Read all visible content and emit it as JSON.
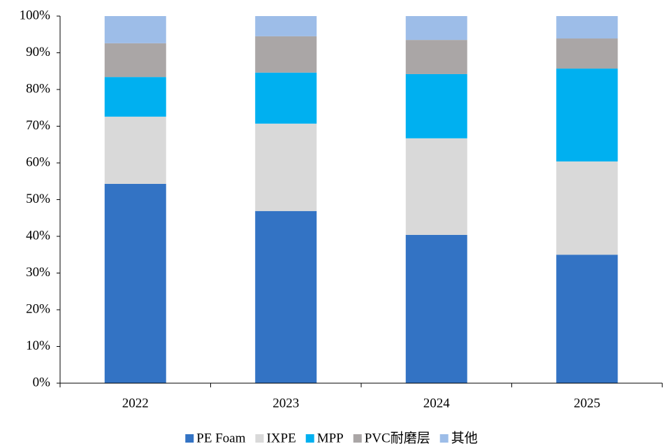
{
  "chart_data": {
    "type": "stacked_bar",
    "categories": [
      "2022",
      "2023",
      "2024",
      "2025"
    ],
    "series": [
      {
        "name": "PE Foam",
        "color": "#3373c4",
        "values": [
          54.3,
          46.9,
          40.4,
          35.0
        ]
      },
      {
        "name": "IXPE",
        "color": "#d9d9d9",
        "values": [
          18.3,
          23.8,
          26.3,
          25.4
        ]
      },
      {
        "name": "MPP",
        "color": "#00b0f0",
        "values": [
          10.8,
          13.9,
          17.5,
          25.3
        ]
      },
      {
        "name": "PVC耐磨层",
        "color": "#aaa6a6",
        "values": [
          9.2,
          9.9,
          9.3,
          8.2
        ]
      },
      {
        "name": "其他",
        "color": "#9dbde8",
        "values": [
          7.4,
          5.5,
          6.5,
          6.1
        ]
      }
    ],
    "ylim": [
      0,
      100
    ],
    "yticks": [
      {
        "value": 0,
        "label": "0%"
      },
      {
        "value": 10,
        "label": "10%"
      },
      {
        "value": 20,
        "label": "20%"
      },
      {
        "value": 30,
        "label": "30%"
      },
      {
        "value": 40,
        "label": "40%"
      },
      {
        "value": 50,
        "label": "50%"
      },
      {
        "value": 60,
        "label": "60%"
      },
      {
        "value": 70,
        "label": "70%"
      },
      {
        "value": 80,
        "label": "80%"
      },
      {
        "value": 90,
        "label": "90%"
      },
      {
        "value": 100,
        "label": "100%"
      }
    ],
    "legend": "bottom"
  }
}
